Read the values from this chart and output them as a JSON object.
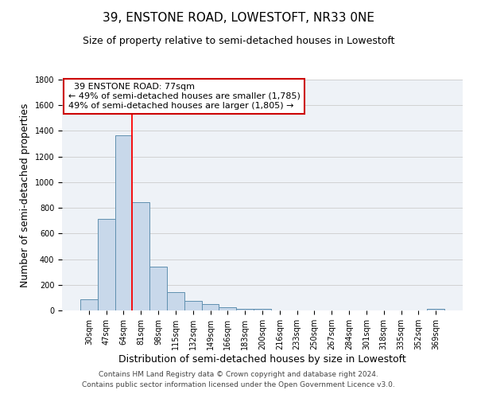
{
  "title": "39, ENSTONE ROAD, LOWESTOFT, NR33 0NE",
  "subtitle": "Size of property relative to semi-detached houses in Lowestoft",
  "xlabel": "Distribution of semi-detached houses by size in Lowestoft",
  "ylabel": "Number of semi-detached properties",
  "bar_labels": [
    "30sqm",
    "47sqm",
    "64sqm",
    "81sqm",
    "98sqm",
    "115sqm",
    "132sqm",
    "149sqm",
    "166sqm",
    "183sqm",
    "200sqm",
    "216sqm",
    "233sqm",
    "250sqm",
    "267sqm",
    "284sqm",
    "301sqm",
    "318sqm",
    "335sqm",
    "352sqm",
    "369sqm"
  ],
  "bar_values": [
    85,
    715,
    1365,
    845,
    340,
    140,
    75,
    50,
    25,
    10,
    10,
    0,
    0,
    0,
    0,
    0,
    0,
    0,
    0,
    0,
    15
  ],
  "bar_width": 1.0,
  "bar_color": "#c8d8ea",
  "bar_edge_color": "#6090b0",
  "bar_edge_width": 0.7,
  "ylim": [
    0,
    1800
  ],
  "yticks": [
    0,
    200,
    400,
    600,
    800,
    1000,
    1200,
    1400,
    1600,
    1800
  ],
  "grid_color": "#cccccc",
  "red_line_bar_index": 3,
  "annotation_title": "39 ENSTONE ROAD: 77sqm",
  "annotation_line1": "← 49% of semi-detached houses are smaller (1,785)",
  "annotation_line2": "49% of semi-detached houses are larger (1,805) →",
  "annotation_box_color": "#ffffff",
  "annotation_box_edge": "#cc0000",
  "footer_line1": "Contains HM Land Registry data © Crown copyright and database right 2024.",
  "footer_line2": "Contains public sector information licensed under the Open Government Licence v3.0.",
  "title_fontsize": 11,
  "subtitle_fontsize": 9,
  "axis_label_fontsize": 9,
  "tick_fontsize": 7,
  "annotation_fontsize": 8,
  "footer_fontsize": 6.5,
  "background_color": "#ffffff",
  "plot_background": "#eef2f7"
}
